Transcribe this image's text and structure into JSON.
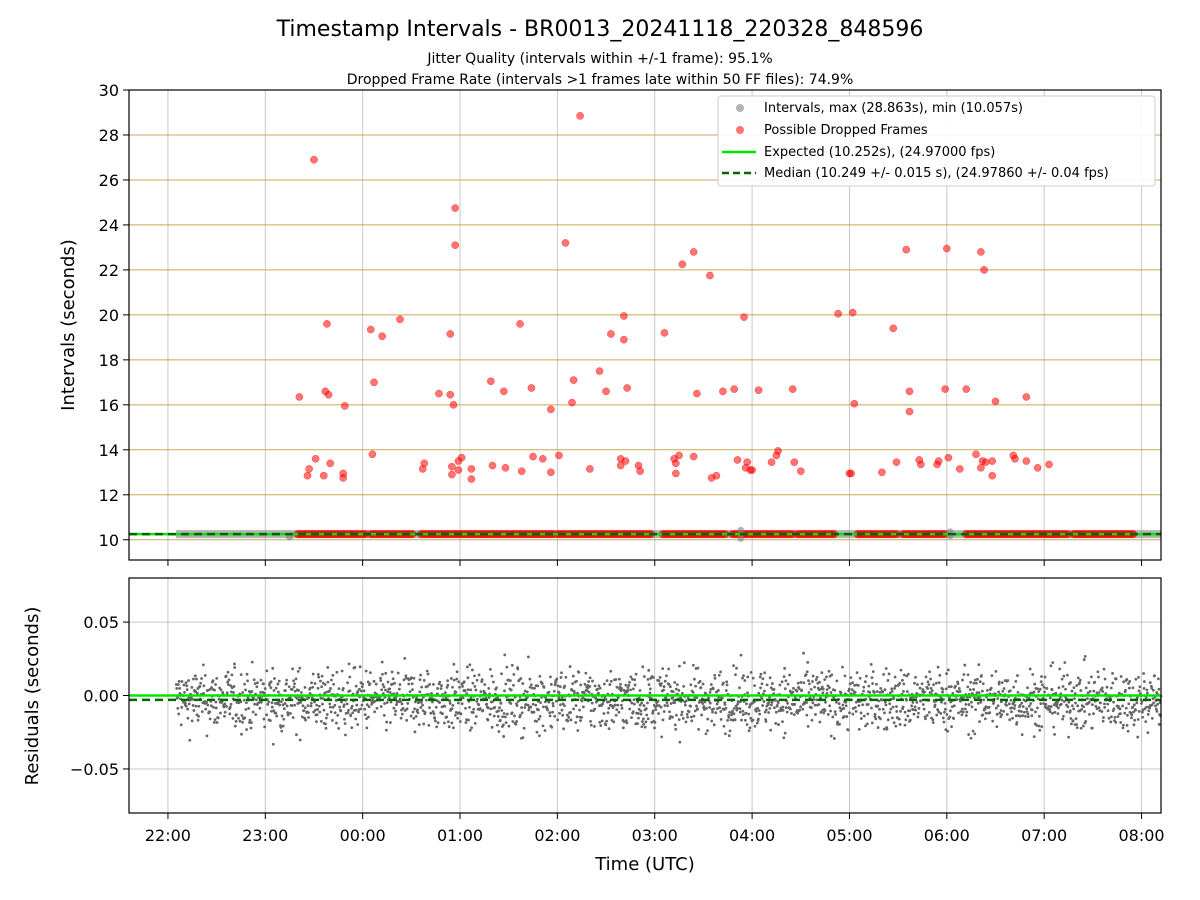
{
  "title": "Timestamp Intervals - BR0013_20241118_220328_848596",
  "subtitle_1": "Jitter Quality (intervals within +/-1 frame): 95.1%",
  "subtitle_2": "Dropped Frame Rate (intervals >1 frames late within 50 FF files): 74.9%",
  "colors": {
    "intervals": "#808080",
    "dropped": "#ff0000",
    "expected": "#00e600",
    "median": "#006400",
    "interval_grid": "#c8a850",
    "grid": "#b0b0b0"
  },
  "chart_data": [
    {
      "type": "scatter",
      "name": "intervals-panel",
      "ylabel": "Intervals (seconds)",
      "ylim": [
        9.1,
        30
      ],
      "yticks": [
        10,
        12,
        14,
        16,
        18,
        20,
        22,
        24,
        26,
        28,
        30
      ],
      "ytick_labels": [
        "10",
        "12",
        "14",
        "16",
        "18",
        "20",
        "22",
        "24",
        "26",
        "28",
        "30"
      ],
      "xlim": [
        "21:36",
        "08:12"
      ],
      "grid": true,
      "legend_placement": "top-right",
      "legend": [
        "Intervals, max (28.863s), min (10.057s)",
        "Possible Dropped Frames",
        "Expected (10.252s), (24.97000 fps)",
        "Median (10.249 +/- 0.015 s), (24.97860 +/- 0.04 fps)"
      ],
      "expected_value": 10.252,
      "median_value": 10.249,
      "baseline_interval": 10.25,
      "dropped_baseline_ranges": [
        [
          "23:20",
          "00:02"
        ],
        [
          "00:05",
          "00:32"
        ],
        [
          "00:36",
          "01:58"
        ],
        [
          "02:00",
          "02:58"
        ],
        [
          "03:05",
          "03:45"
        ],
        [
          "03:48",
          "04:25"
        ],
        [
          "04:28",
          "04:52"
        ],
        [
          "05:05",
          "05:30"
        ],
        [
          "05:33",
          "06:00"
        ],
        [
          "06:12",
          "07:15"
        ],
        [
          "07:18",
          "07:55"
        ]
      ],
      "series": [
        {
          "name": "Possible Dropped Frames",
          "points": [
            [
              "23:21",
              16.35
            ],
            [
              "23:26",
              12.85
            ],
            [
              "23:27",
              13.15
            ],
            [
              "23:30",
              26.9
            ],
            [
              "23:31",
              13.6
            ],
            [
              "23:36",
              12.85
            ],
            [
              "23:37",
              16.6
            ],
            [
              "23:38",
              19.6
            ],
            [
              "23:39",
              16.45
            ],
            [
              "23:40",
              13.4
            ],
            [
              "23:48",
              12.95
            ],
            [
              "23:48",
              12.75
            ],
            [
              "23:49",
              15.95
            ],
            [
              "00:05",
              19.35
            ],
            [
              "00:06",
              13.8
            ],
            [
              "00:07",
              17.0
            ],
            [
              "00:12",
              19.05
            ],
            [
              "00:23",
              19.8
            ],
            [
              "00:37",
              13.15
            ],
            [
              "00:38",
              13.4
            ],
            [
              "00:47",
              16.5
            ],
            [
              "00:54",
              19.15
            ],
            [
              "00:54",
              16.45
            ],
            [
              "00:55",
              13.25
            ],
            [
              "00:55",
              12.9
            ],
            [
              "00:56",
              16.0
            ],
            [
              "00:57",
              24.75
            ],
            [
              "00:57",
              23.1
            ],
            [
              "00:59",
              13.1
            ],
            [
              "00:59",
              13.5
            ],
            [
              "01:01",
              13.65
            ],
            [
              "01:07",
              12.7
            ],
            [
              "01:07",
              13.15
            ],
            [
              "01:19",
              17.05
            ],
            [
              "01:20",
              13.3
            ],
            [
              "01:27",
              16.6
            ],
            [
              "01:28",
              13.2
            ],
            [
              "01:37",
              19.6
            ],
            [
              "01:38",
              13.05
            ],
            [
              "01:44",
              16.75
            ],
            [
              "01:45",
              13.7
            ],
            [
              "01:51",
              13.6
            ],
            [
              "01:56",
              15.8
            ],
            [
              "01:56",
              13.0
            ],
            [
              "02:01",
              13.75
            ],
            [
              "02:05",
              23.2
            ],
            [
              "02:09",
              16.1
            ],
            [
              "02:10",
              17.1
            ],
            [
              "02:14",
              28.85
            ],
            [
              "02:20",
              13.15
            ],
            [
              "02:26",
              17.5
            ],
            [
              "02:30",
              16.6
            ],
            [
              "02:33",
              19.15
            ],
            [
              "02:39",
              13.6
            ],
            [
              "02:39",
              13.3
            ],
            [
              "02:41",
              19.95
            ],
            [
              "02:41",
              18.9
            ],
            [
              "02:42",
              13.5
            ],
            [
              "02:43",
              16.75
            ],
            [
              "02:50",
              13.3
            ],
            [
              "02:51",
              13.05
            ],
            [
              "03:06",
              19.2
            ],
            [
              "03:12",
              13.6
            ],
            [
              "03:13",
              12.95
            ],
            [
              "03:13",
              13.4
            ],
            [
              "03:15",
              13.75
            ],
            [
              "03:17",
              22.25
            ],
            [
              "03:24",
              22.8
            ],
            [
              "03:24",
              13.7
            ],
            [
              "03:26",
              16.5
            ],
            [
              "03:34",
              21.75
            ],
            [
              "03:35",
              12.75
            ],
            [
              "03:38",
              12.85
            ],
            [
              "03:42",
              16.6
            ],
            [
              "03:49",
              16.7
            ],
            [
              "03:51",
              13.55
            ],
            [
              "03:55",
              19.9
            ],
            [
              "03:56",
              13.2
            ],
            [
              "03:57",
              13.45
            ],
            [
              "03:59",
              13.1
            ],
            [
              "04:00",
              13.1
            ],
            [
              "04:04",
              16.65
            ],
            [
              "04:12",
              13.45
            ],
            [
              "04:15",
              13.75
            ],
            [
              "04:16",
              13.95
            ],
            [
              "04:25",
              16.7
            ],
            [
              "04:26",
              13.45
            ],
            [
              "04:30",
              13.05
            ],
            [
              "04:53",
              20.05
            ],
            [
              "05:00",
              12.95
            ],
            [
              "05:01",
              12.95
            ],
            [
              "05:02",
              20.1
            ],
            [
              "05:03",
              16.05
            ],
            [
              "05:20",
              13.0
            ],
            [
              "05:27",
              19.4
            ],
            [
              "05:29",
              13.45
            ],
            [
              "05:35",
              22.9
            ],
            [
              "05:37",
              16.6
            ],
            [
              "05:37",
              15.7
            ],
            [
              "05:43",
              13.55
            ],
            [
              "05:44",
              13.35
            ],
            [
              "05:54",
              13.35
            ],
            [
              "05:55",
              13.5
            ],
            [
              "05:59",
              16.7
            ],
            [
              "06:00",
              22.95
            ],
            [
              "06:01",
              13.65
            ],
            [
              "06:08",
              13.15
            ],
            [
              "06:12",
              16.7
            ],
            [
              "06:18",
              13.8
            ],
            [
              "06:21",
              22.8
            ],
            [
              "06:21",
              13.2
            ],
            [
              "06:22",
              13.5
            ],
            [
              "06:23",
              22.0
            ],
            [
              "06:24",
              13.45
            ],
            [
              "06:28",
              13.5
            ],
            [
              "06:28",
              12.85
            ],
            [
              "06:30",
              16.15
            ],
            [
              "06:41",
              13.75
            ],
            [
              "06:42",
              13.6
            ],
            [
              "06:49",
              16.35
            ],
            [
              "06:49",
              13.5
            ],
            [
              "06:56",
              13.2
            ],
            [
              "07:03",
              13.35
            ]
          ]
        }
      ]
    },
    {
      "type": "scatter",
      "name": "residuals-panel",
      "xlabel": "Time (UTC)",
      "ylabel": "Residuals (seconds)",
      "ylim": [
        -0.08,
        0.08
      ],
      "yticks": [
        -0.05,
        0.0,
        0.05
      ],
      "ytick_labels": [
        "−0.05",
        "0.00",
        "0.05"
      ],
      "xlim": [
        "21:36",
        "08:12"
      ],
      "xticks": [
        "22:00",
        "23:00",
        "00:00",
        "01:00",
        "02:00",
        "03:00",
        "04:00",
        "05:00",
        "06:00",
        "07:00",
        "08:00"
      ],
      "grid": true,
      "expected_residual": 0.0,
      "median_residual": -0.003,
      "residual_spread": [
        -0.047,
        0.038
      ],
      "residual_time_range": [
        "22:05",
        "08:12"
      ]
    }
  ]
}
